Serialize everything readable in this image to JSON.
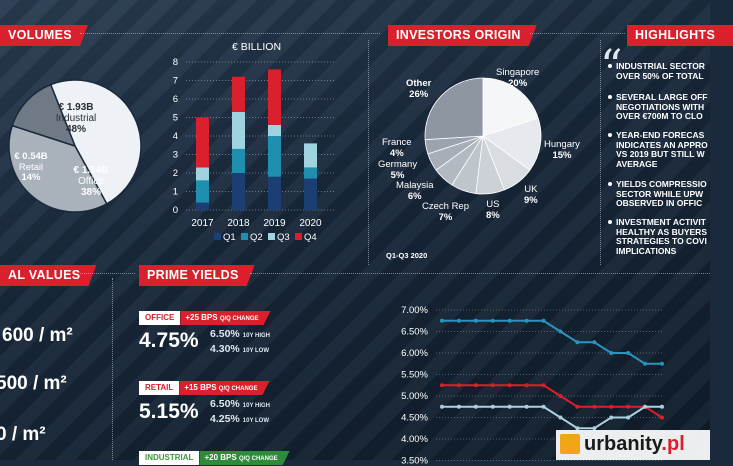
{
  "sections": {
    "volumes": "VOLUMES",
    "investors": "INVESTORS ORIGIN",
    "highlights": "HIGHLIGHTS",
    "rental": "AL VALUES",
    "yields": "PRIME YIELDS"
  },
  "chart_data": [
    {
      "type": "pie",
      "slices": [
        {
          "value": "€ 1.93B",
          "name": "Industrial",
          "pct": "48%",
          "share": 48
        },
        {
          "value": "€ 1.54B",
          "name": "Office",
          "pct": "38%",
          "share": 38
        },
        {
          "value": "€ 0.54B",
          "name": "Retail",
          "pct": "14%",
          "share": 14
        }
      ],
      "colors": [
        "#eef1f5",
        "#a9b1bb",
        "#6f7a86"
      ]
    },
    {
      "type": "bar",
      "title": "€ BILLION",
      "categories": [
        "2017",
        "2018",
        "2019",
        "2020"
      ],
      "ylim": [
        0,
        8
      ],
      "yticks": [
        "0",
        "1",
        "2",
        "3",
        "4",
        "5",
        "6",
        "7",
        "8"
      ],
      "series": [
        {
          "name": "Q1",
          "color": "#1c3f73",
          "values": [
            0.4,
            2.0,
            1.8,
            1.7
          ]
        },
        {
          "name": "Q2",
          "color": "#1f8fb0",
          "values": [
            1.2,
            1.3,
            2.2,
            0.6
          ]
        },
        {
          "name": "Q3",
          "color": "#9fd3e0",
          "values": [
            0.7,
            2.0,
            0.6,
            1.3
          ]
        },
        {
          "name": "Q4",
          "color": "#d9202c",
          "values": [
            2.7,
            1.9,
            3.0,
            0
          ]
        }
      ]
    },
    {
      "type": "pie",
      "slices": [
        {
          "name": "Singapore",
          "pct": "20%",
          "share": 20
        },
        {
          "name": "Hungary",
          "pct": "15%",
          "share": 15
        },
        {
          "name": "UK",
          "pct": "9%",
          "share": 9
        },
        {
          "name": "US",
          "pct": "8%",
          "share": 8
        },
        {
          "name": "Czech Rep",
          "pct": "7%",
          "share": 7
        },
        {
          "name": "Malaysia",
          "pct": "6%",
          "share": 6
        },
        {
          "name": "Germany",
          "pct": "5%",
          "share": 5
        },
        {
          "name": "France",
          "pct": "4%",
          "share": 4
        },
        {
          "name": "Other",
          "pct": "26%",
          "share": 26
        }
      ],
      "colors": [
        "#f4f6f8",
        "#e6e9ed",
        "#d9dde2",
        "#ccd1d7",
        "#bfc5cc",
        "#b3b9c1",
        "#a7aeb7",
        "#9ca3ad",
        "#8e96a1"
      ],
      "note": "Q1-Q3 2020"
    },
    {
      "type": "line",
      "yticks": [
        "7.00%",
        "6.50%",
        "6.00%",
        "5.50%",
        "5.00%",
        "4.50%",
        "4.00%",
        "3.50%"
      ],
      "ylim": [
        3.5,
        7.0
      ],
      "series": [
        {
          "color": "#2a93c0",
          "values": [
            6.75,
            6.75,
            6.75,
            6.75,
            6.75,
            6.75,
            6.75,
            6.5,
            6.25,
            6.25,
            6.0,
            6.0,
            5.75,
            5.75
          ]
        },
        {
          "color": "#d9202c",
          "values": [
            5.25,
            5.25,
            5.25,
            5.25,
            5.25,
            5.25,
            5.25,
            5.0,
            4.75,
            4.75,
            4.75,
            4.75,
            4.75,
            4.5
          ]
        },
        {
          "color": "#aad1e0",
          "values": [
            4.75,
            4.75,
            4.75,
            4.75,
            4.75,
            4.75,
            4.75,
            4.5,
            4.25,
            4.25,
            4.5,
            4.5,
            4.75,
            4.75
          ]
        }
      ]
    }
  ],
  "highlights": [
    [
      "INDUSTRIAL SECTOR",
      "OVER 50% OF TOTAL"
    ],
    [
      "SEVERAL LARGE OFF",
      "NEGOTIATIONS WITH",
      "OVER €700M TO CLO"
    ],
    [
      "YEAR-END FORECAS",
      "INDICATES AN APPRO",
      "VS 2019 BUT STILL W",
      "AVERAGE"
    ],
    [
      "YIELDS COMPRESSIO",
      "SECTOR WHILE UPW",
      "OBSERVED IN OFFIC"
    ],
    [
      "INVESTMENT ACTIVIT",
      "HEALTHY AS BUYERS",
      "STRATEGIES TO COVI",
      "IMPLICATIONS"
    ]
  ],
  "rental_values": [
    "600 / m²",
    "500 / m²",
    "0 / m²"
  ],
  "prime_yields": [
    {
      "sector": "OFFICE",
      "change": "+25 BPS",
      "change_label": "Q/Q CHANGE",
      "value": "4.75%",
      "high": "6.50%",
      "high_label": "10Y HIGH",
      "low": "4.30%",
      "low_label": "10Y LOW"
    },
    {
      "sector": "RETAIL",
      "change": "+15 BPS",
      "change_label": "Q/Q CHANGE",
      "value": "5.15%",
      "high": "6.50%",
      "high_label": "10Y HIGH",
      "low": "4.25%",
      "low_label": "10Y LOW"
    },
    {
      "sector": "INDUSTRIAL",
      "change": "+20 BPS",
      "change_label": "Q/Q CHANGE"
    }
  ],
  "logo": {
    "name": "urbanity",
    "tld": ".pl"
  }
}
